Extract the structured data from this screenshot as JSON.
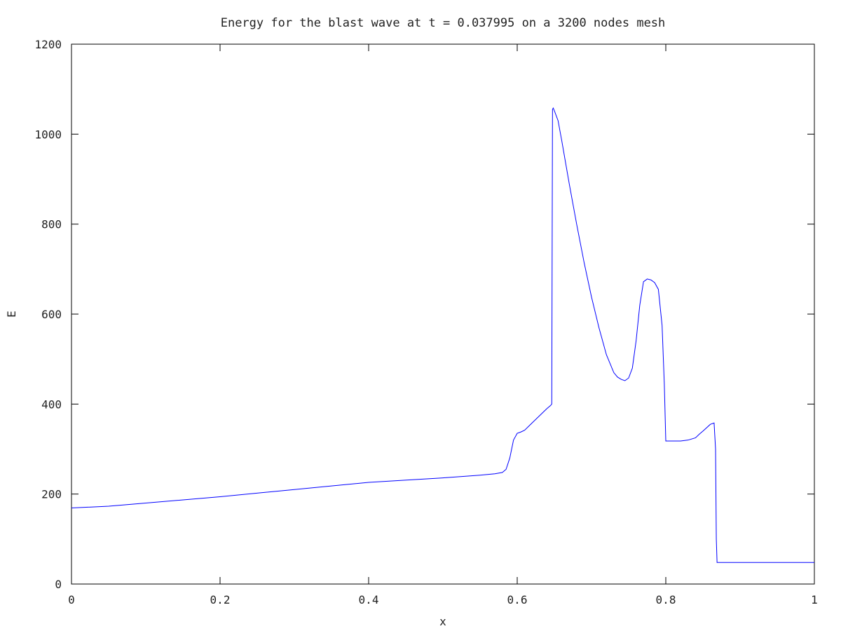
{
  "chart_data": {
    "type": "line",
    "title": "Energy for the blast wave at t = 0.037995 on a 3200 nodes mesh",
    "xlabel": "x",
    "ylabel": "E",
    "xlim": [
      0,
      1
    ],
    "ylim": [
      0,
      1200
    ],
    "x_ticks": [
      "0",
      "0.2",
      "0.4",
      "0.6",
      "0.8",
      "1"
    ],
    "y_ticks": [
      "0",
      "200",
      "400",
      "600",
      "800",
      "1000",
      "1200"
    ],
    "grid": false,
    "legend": "none",
    "colors": {
      "line": "#0000ff",
      "axes": "#000000",
      "background": "#ffffff"
    },
    "series": [
      {
        "x": [
          0,
          0.05,
          0.1,
          0.2,
          0.3,
          0.4,
          0.5,
          0.55,
          0.57,
          0.58,
          0.585,
          0.59,
          0.595,
          0.6,
          0.605,
          0.61,
          0.62,
          0.63,
          0.64,
          0.645,
          0.6465,
          0.6475,
          0.6485,
          0.65,
          0.655,
          0.66,
          0.67,
          0.68,
          0.69,
          0.7,
          0.71,
          0.72,
          0.73,
          0.735,
          0.74,
          0.745,
          0.75,
          0.755,
          0.76,
          0.765,
          0.77,
          0.775,
          0.78,
          0.785,
          0.79,
          0.795,
          0.798,
          0.8,
          0.805,
          0.81,
          0.82,
          0.83,
          0.84,
          0.845,
          0.85,
          0.86,
          0.865,
          0.867,
          0.868,
          0.869,
          0.9,
          0.95,
          1.0
        ],
        "y": [
          169,
          173,
          180,
          194,
          210,
          226,
          236,
          242,
          245,
          248,
          255,
          280,
          320,
          335,
          338,
          342,
          358,
          374,
          390,
          397,
          400,
          1055,
          1058,
          1052,
          1030,
          985,
          890,
          800,
          715,
          638,
          570,
          510,
          470,
          460,
          455,
          452,
          458,
          480,
          540,
          620,
          672,
          678,
          676,
          670,
          655,
          575,
          445,
          318,
          318,
          318,
          318,
          320,
          325,
          333,
          340,
          355,
          358,
          300,
          100,
          48,
          48,
          48,
          48
        ]
      }
    ]
  }
}
